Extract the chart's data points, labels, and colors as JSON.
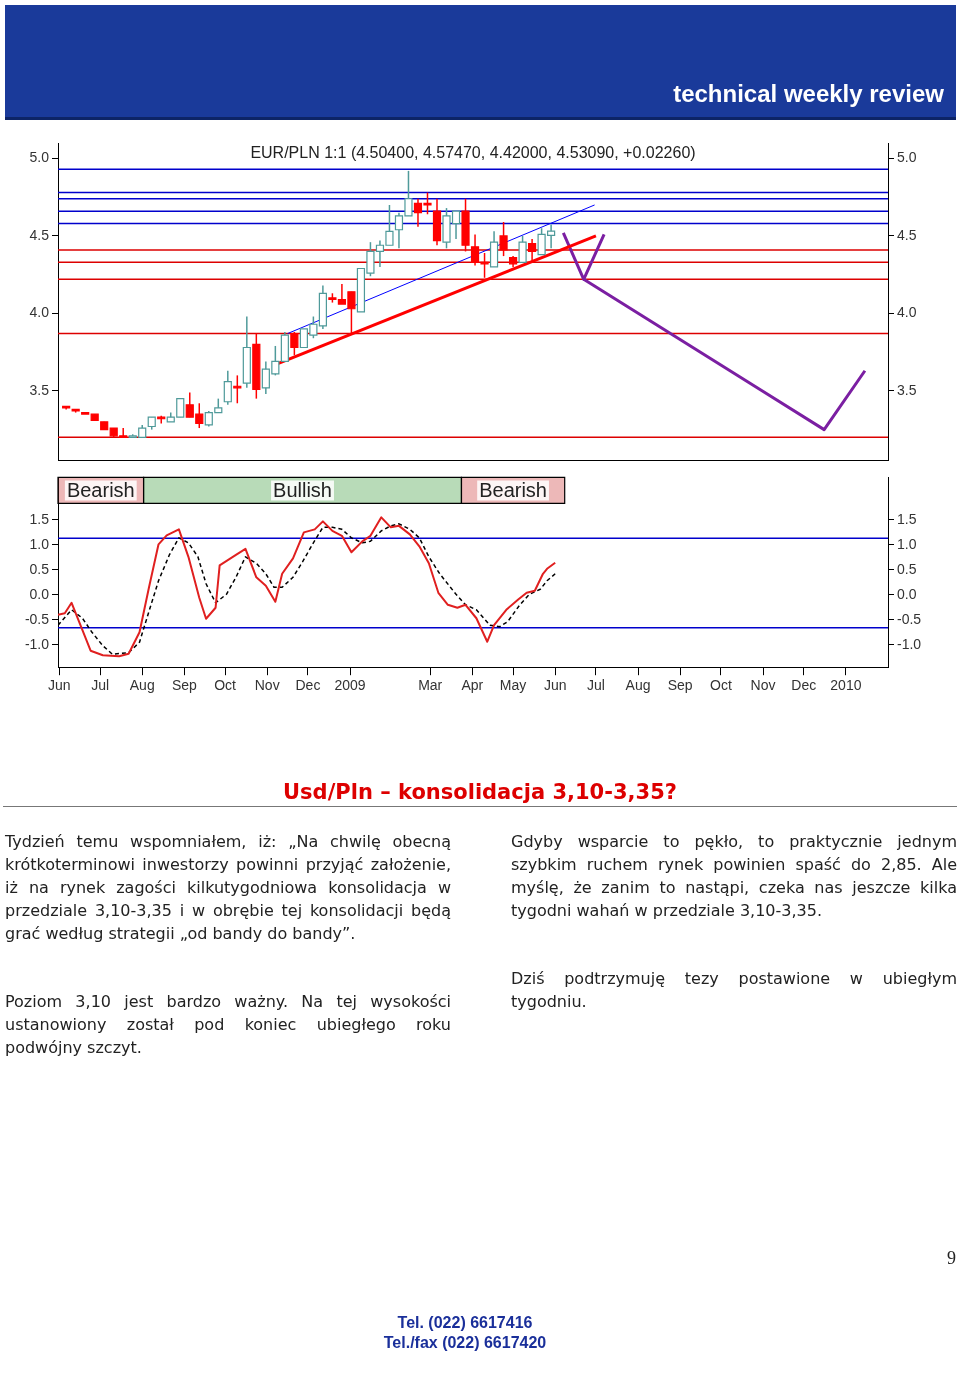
{
  "chart_data": [
    {
      "type": "candlestick",
      "title": "EUR/PLN 1:1 (4.50400, 4.57470, 4.42000, 4.53090, +0.02260)",
      "x": [
        "2008-06-06",
        "2008-06-13",
        "2008-06-20",
        "2008-06-27",
        "2008-07-04",
        "2008-07-11",
        "2008-07-18",
        "2008-07-25",
        "2008-08-01",
        "2008-08-08",
        "2008-08-15",
        "2008-08-22",
        "2008-08-29",
        "2008-09-05",
        "2008-09-12",
        "2008-09-19",
        "2008-09-26",
        "2008-10-03",
        "2008-10-10",
        "2008-10-17",
        "2008-10-24",
        "2008-10-31",
        "2008-11-07",
        "2008-11-14",
        "2008-11-21",
        "2008-11-28",
        "2008-12-05",
        "2008-12-12",
        "2008-12-19",
        "2008-12-26",
        "2009-01-02",
        "2009-01-09",
        "2009-01-16",
        "2009-01-23",
        "2009-01-30",
        "2009-02-06",
        "2009-02-13",
        "2009-02-20",
        "2009-02-27",
        "2009-03-06",
        "2009-03-13",
        "2009-03-20",
        "2009-03-27",
        "2009-04-03",
        "2009-04-10",
        "2009-04-17",
        "2009-04-24",
        "2009-05-01",
        "2009-05-08",
        "2009-05-15",
        "2009-05-22",
        "2009-05-29"
      ],
      "ohlc": [
        [
          3.4,
          3.4,
          3.38,
          3.39
        ],
        [
          3.38,
          3.38,
          3.36,
          3.37
        ],
        [
          3.36,
          3.36,
          3.35,
          3.35
        ],
        [
          3.35,
          3.35,
          3.31,
          3.31
        ],
        [
          3.3,
          3.3,
          3.25,
          3.25
        ],
        [
          3.26,
          3.26,
          3.2,
          3.21
        ],
        [
          3.21,
          3.26,
          3.2,
          3.2
        ],
        [
          3.2,
          3.22,
          3.2,
          3.21
        ],
        [
          3.2,
          3.28,
          3.2,
          3.26
        ],
        [
          3.27,
          3.33,
          3.25,
          3.33
        ],
        [
          3.33,
          3.34,
          3.29,
          3.32
        ],
        [
          3.3,
          3.36,
          3.3,
          3.33
        ],
        [
          3.33,
          3.45,
          3.33,
          3.45
        ],
        [
          3.41,
          3.49,
          3.33,
          3.33
        ],
        [
          3.35,
          3.42,
          3.26,
          3.29
        ],
        [
          3.28,
          3.37,
          3.27,
          3.36
        ],
        [
          3.36,
          3.45,
          3.36,
          3.39
        ],
        [
          3.43,
          3.63,
          3.41,
          3.56
        ],
        [
          3.53,
          3.6,
          3.42,
          3.52
        ],
        [
          3.55,
          3.98,
          3.52,
          3.78
        ],
        [
          3.8,
          3.87,
          3.45,
          3.51
        ],
        [
          3.52,
          3.69,
          3.48,
          3.64
        ],
        [
          3.61,
          3.79,
          3.6,
          3.69
        ],
        [
          3.69,
          3.88,
          3.69,
          3.86
        ],
        [
          3.87,
          3.88,
          3.73,
          3.78
        ],
        [
          3.78,
          3.9,
          3.78,
          3.9
        ],
        [
          3.86,
          3.98,
          3.84,
          3.93
        ],
        [
          3.92,
          4.18,
          3.9,
          4.13
        ],
        [
          4.1,
          4.13,
          4.07,
          4.09
        ],
        [
          4.09,
          4.19,
          4.06,
          4.06
        ],
        [
          4.14,
          4.14,
          3.87,
          4.03
        ],
        [
          4.01,
          4.29,
          4.01,
          4.29
        ],
        [
          4.26,
          4.46,
          4.24,
          4.4
        ],
        [
          4.4,
          4.47,
          4.3,
          4.44
        ],
        [
          4.44,
          4.7,
          4.44,
          4.53
        ],
        [
          4.54,
          4.65,
          4.42,
          4.63
        ],
        [
          4.63,
          4.92,
          4.63,
          4.74
        ],
        [
          4.71,
          4.74,
          4.56,
          4.65
        ],
        [
          4.71,
          4.78,
          4.64,
          4.7
        ],
        [
          4.66,
          4.74,
          4.44,
          4.47
        ],
        [
          4.46,
          4.68,
          4.42,
          4.63
        ],
        [
          4.58,
          4.66,
          4.48,
          4.66
        ],
        [
          4.66,
          4.74,
          4.4,
          4.44
        ],
        [
          4.43,
          4.51,
          4.31,
          4.33
        ],
        [
          4.33,
          4.39,
          4.23,
          4.32
        ],
        [
          4.3,
          4.53,
          4.3,
          4.46
        ],
        [
          4.5,
          4.59,
          4.37,
          4.41
        ],
        [
          4.36,
          4.37,
          4.3,
          4.32
        ],
        [
          4.33,
          4.5,
          4.33,
          4.46
        ],
        [
          4.45,
          4.48,
          4.34,
          4.4
        ],
        [
          4.38,
          4.55,
          4.38,
          4.51
        ],
        [
          4.504,
          4.5747,
          4.42,
          4.5309
        ]
      ],
      "series": [
        {
          "type": "line",
          "color": "#ff0000",
          "x": [
            "2008-11-07",
            "2009-07-01"
          ],
          "values": [
            3.67,
            4.5
          ]
        },
        {
          "type": "line",
          "color": "#0000ff",
          "x": [
            "2008-11-16",
            "2009-06-30"
          ],
          "values": [
            3.87,
            4.7
          ]
        },
        {
          "type": "line",
          "color": "#7b1fa2",
          "x": [
            "2009-06-07",
            "2009-06-22",
            "2009-07-07"
          ],
          "values": [
            4.52,
            4.22,
            4.51
          ]
        },
        {
          "type": "line",
          "color": "#7b1fa2",
          "x": [
            "2009-06-22",
            "2009-12-16",
            "2010-01-15"
          ],
          "values": [
            4.22,
            3.25,
            3.63
          ]
        }
      ],
      "xlim": [
        "2008-05-31",
        "2010-02-01"
      ],
      "ylim": [
        3.05,
        5.1
      ],
      "yticks": [
        3.5,
        {
          "value": 4,
          "label": "4.0"
        },
        4.5,
        {
          "value": 5,
          "label": "5.0"
        }
      ],
      "y2lim": [
        3.05,
        5.1
      ],
      "y2ticks": [
        3.5,
        {
          "value": 4,
          "label": "4.0"
        },
        4.5,
        {
          "value": 5,
          "label": "5.0"
        }
      ],
      "tick_labels": "y",
      "ref_lines": [
        {
          "axis": "y",
          "value": 4.93,
          "color": "#0000cc"
        },
        {
          "axis": "y",
          "value": 4.78,
          "color": "#0000cc"
        },
        {
          "axis": "y",
          "value": 4.74,
          "color": "#0000cc"
        },
        {
          "axis": "y",
          "value": 4.66,
          "color": "#0000cc"
        },
        {
          "axis": "y",
          "value": 4.58,
          "color": "#0000cc"
        },
        {
          "axis": "y",
          "value": 4.41,
          "color": "#dd0000"
        },
        {
          "axis": "y",
          "value": 4.33,
          "color": "#dd0000"
        },
        {
          "axis": "y",
          "value": 4.22,
          "color": "#dd0000"
        },
        {
          "axis": "y",
          "value": 3.87,
          "color": "#dd0000"
        },
        {
          "axis": "y",
          "value": 3.2,
          "color": "#dd0000"
        }
      ]
    },
    {
      "type": "line",
      "series": [
        {
          "color": "#e02020",
          "line_style": "solid",
          "x": [
            "2008-05-31",
            "2008-06-05",
            "2008-06-10",
            "2008-06-18",
            "2008-06-24",
            "2008-07-03",
            "2008-07-15",
            "2008-07-22",
            "2008-07-30",
            "2008-08-06",
            "2008-08-13",
            "2008-08-19",
            "2008-08-28",
            "2008-09-04",
            "2008-09-12",
            "2008-09-17",
            "2008-09-24",
            "2008-09-27",
            "2008-10-09",
            "2008-10-16",
            "2008-10-24",
            "2008-10-31",
            "2008-11-07",
            "2008-11-12",
            "2008-11-20",
            "2008-11-28",
            "2008-12-06",
            "2008-12-12",
            "2008-12-19",
            "2008-12-26",
            "2009-01-02",
            "2009-01-10",
            "2009-01-16",
            "2009-01-24",
            "2009-01-31",
            "2009-02-06",
            "2009-02-14",
            "2009-02-21",
            "2009-02-28",
            "2009-03-07",
            "2009-03-14",
            "2009-03-21",
            "2009-03-27",
            "2009-04-04",
            "2009-04-12",
            "2009-04-17",
            "2009-04-26",
            "2009-05-05",
            "2009-05-11",
            "2009-05-17",
            "2009-05-23",
            "2009-05-26",
            "2009-06-01"
          ],
          "values": [
            -0.4,
            -0.37,
            -0.16,
            -0.71,
            -1.12,
            -1.21,
            -1.23,
            -1.18,
            -0.75,
            0.15,
            1.01,
            1.19,
            1.31,
            0.76,
            -0.06,
            -0.48,
            -0.26,
            0.59,
            0.8,
            0.92,
            0.35,
            0.18,
            -0.14,
            0.42,
            0.73,
            1.25,
            1.31,
            1.47,
            1.28,
            1.18,
            0.85,
            1.07,
            1.18,
            1.55,
            1.35,
            1.38,
            1.21,
            0.97,
            0.63,
            0.04,
            -0.2,
            -0.26,
            -0.2,
            -0.47,
            -0.94,
            -0.61,
            -0.3,
            -0.09,
            0.04,
            0.08,
            0.42,
            0.52,
            0.64
          ]
        },
        {
          "color": "#000000",
          "line_style": "dashed",
          "x": [
            "2008-05-31",
            "2008-06-10",
            "2008-06-18",
            "2008-06-25",
            "2008-07-03",
            "2008-07-10",
            "2008-07-22",
            "2008-07-30",
            "2008-08-06",
            "2008-08-13",
            "2008-08-21",
            "2008-08-28",
            "2008-09-04",
            "2008-09-11",
            "2008-09-17",
            "2008-09-24",
            "2008-10-02",
            "2008-10-09",
            "2008-10-16",
            "2008-10-24",
            "2008-10-31",
            "2008-11-06",
            "2008-11-12",
            "2008-11-20",
            "2008-11-27",
            "2008-12-05",
            "2008-12-12",
            "2008-12-19",
            "2008-12-26",
            "2009-01-02",
            "2009-01-10",
            "2009-01-16",
            "2009-01-24",
            "2009-01-31",
            "2009-02-06",
            "2009-02-14",
            "2009-02-21",
            "2009-02-28",
            "2009-03-08",
            "2009-03-20",
            "2009-03-27",
            "2009-04-04",
            "2009-04-14",
            "2009-04-21",
            "2009-04-27",
            "2009-05-06",
            "2009-05-13",
            "2009-05-21",
            "2009-05-26",
            "2009-06-01"
          ],
          "values": [
            -0.61,
            -0.3,
            -0.47,
            -0.75,
            -1.02,
            -1.19,
            -1.16,
            -0.95,
            -0.33,
            0.28,
            0.8,
            1.14,
            1.04,
            0.76,
            0.22,
            -0.16,
            0.01,
            0.35,
            0.76,
            0.63,
            0.42,
            0.15,
            0.15,
            0.35,
            0.66,
            1.04,
            1.35,
            1.35,
            1.31,
            1.14,
            1.04,
            1.07,
            1.28,
            1.38,
            1.42,
            1.31,
            1.14,
            0.76,
            0.42,
            0.01,
            -0.2,
            -0.3,
            -0.61,
            -0.64,
            -0.54,
            -0.2,
            0.01,
            0.11,
            0.28,
            0.42
          ]
        }
      ],
      "xlim": [
        "2008-05-31",
        "2010-02-01"
      ],
      "xticks": [
        {
          "value": "2008-06",
          "label": "Jun"
        },
        {
          "value": "2008-07",
          "label": "Jul"
        },
        {
          "value": "2008-08",
          "label": "Aug"
        },
        {
          "value": "2008-09",
          "label": "Sep"
        },
        {
          "value": "2008-10",
          "label": "Oct"
        },
        {
          "value": "2008-11",
          "label": "Nov"
        },
        {
          "value": "2008-12",
          "label": "Dec"
        },
        {
          "value": "2009-01",
          "label": "2009"
        },
        {
          "value": "2009-03",
          "label": "Mar"
        },
        {
          "value": "2009-04",
          "label": "Apr"
        },
        {
          "value": "2009-05",
          "label": "May"
        },
        {
          "value": "2009-06",
          "label": "Jun"
        },
        {
          "value": "2009-07",
          "label": "Jul"
        },
        {
          "value": "2009-08",
          "label": "Aug"
        },
        {
          "value": "2009-09",
          "label": "Sep"
        },
        {
          "value": "2009-10",
          "label": "Oct"
        },
        {
          "value": "2009-11",
          "label": "Nov"
        },
        {
          "value": "2009-12",
          "label": "Dec"
        },
        {
          "value": "2010-01",
          "label": "2010"
        }
      ],
      "ylim": [
        -1.45,
        2.35
      ],
      "yticks": [
        {
          "value": -1,
          "label": "-1.0"
        },
        -0.5,
        {
          "value": 0,
          "label": "0.0"
        },
        0.5,
        {
          "value": 1,
          "label": "1.0"
        },
        1.5
      ],
      "y2lim": [
        -1.45,
        2.35
      ],
      "y2ticks": [
        {
          "value": -1,
          "label": "-1.0"
        },
        -0.5,
        {
          "value": 0,
          "label": "0.0"
        },
        0.5,
        {
          "value": 1,
          "label": "1.0"
        },
        1.5
      ],
      "ref_lines": [
        {
          "axis": "y",
          "value": 1.13,
          "color": "#0000cc"
        },
        {
          "axis": "y",
          "value": -0.66,
          "color": "#0000cc"
        }
      ],
      "bands": [
        {
          "axis": "x",
          "from": "2008-05-31",
          "to": "2008-08-02",
          "label": "Bearish",
          "color": "#cc3333"
        },
        {
          "axis": "x",
          "from": "2008-08-02",
          "to": "2009-03-24",
          "label": "Bullish",
          "color": "#339933"
        },
        {
          "axis": "x",
          "from": "2009-03-24",
          "to": "2009-06-08",
          "label": "Bearish",
          "color": "#cc3333"
        }
      ]
    },
    {
      "type": "other",
      "title": "Usd/Pln – konsolidacja 3,10-3,35?",
      "annotations": [
        "technical weekly review",
        "Tydzień temu wspomniałem, iż: „Na chwilę obecną krótkoterminowi inwestorzy powinni przyjąć założenie, iż na rynek zagości kilkutygodniowa konsolidacja w przedziale 3,10-3,35 i w obrębie tej konsolidacji będą grać według strategii „od bandy do bandy”.",
        "Poziom 3,10 jest bardzo ważny. Na tej wysokości ustanowiony został pod koniec ubiegłego roku podwójny szczyt.",
        "Gdyby wsparcie to pękło, to praktycznie jednym szybkim ruchem rynek powinien spaść do 2,85. Ale myślę, że zanim to nastąpi, czeka nas jeszcze kilka tygodni wahań w przedziale 3,10-3,35.",
        "Dziś podtrzymuję tezy postawione w ubiegłym tygodniu.",
        "Tel. (022) 6617416",
        "Tel./fax (022) 6617420",
        "9"
      ]
    }
  ]
}
